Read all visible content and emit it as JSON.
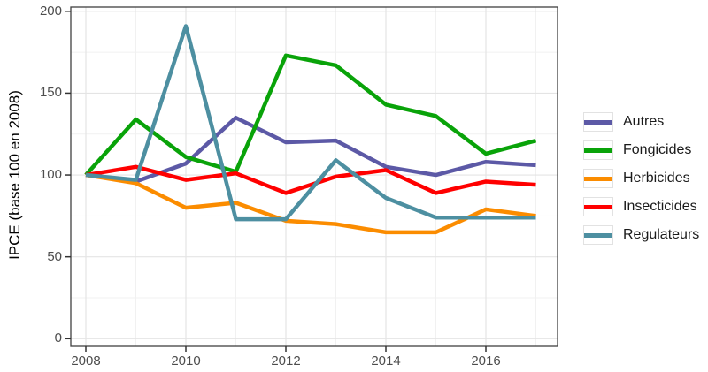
{
  "figure": {
    "background": "#ffffff",
    "panel_border_color": "#404040",
    "grid_major_color": "#e4e4e4",
    "grid_minor_color": "#f1f1f1",
    "tick_color": "#333333",
    "tick_label_color": "#4d4d4d"
  },
  "chart_data": {
    "type": "line",
    "title": "",
    "xlabel": "",
    "ylabel": "IPCE (base 100 en 2008)",
    "x": [
      2008,
      2009,
      2010,
      2011,
      2012,
      2013,
      2014,
      2015,
      2016,
      2017
    ],
    "series": [
      {
        "name": "Autres",
        "color": "#5c59a6",
        "values": [
          100,
          96,
          107,
          135,
          120,
          121,
          105,
          100,
          108,
          106
        ]
      },
      {
        "name": "Fongicides",
        "color": "#09a309",
        "values": [
          100,
          134,
          111,
          102,
          173,
          167,
          143,
          136,
          113,
          121
        ]
      },
      {
        "name": "Herbicides",
        "color": "#fb8c00",
        "values": [
          100,
          95,
          80,
          83,
          72,
          70,
          65,
          65,
          79,
          75
        ]
      },
      {
        "name": "Insecticides",
        "color": "#ff0000",
        "values": [
          100,
          105,
          97,
          101,
          89,
          99,
          103,
          89,
          96,
          94
        ]
      },
      {
        "name": "Regulateurs",
        "color": "#4d8fa1",
        "values": [
          100,
          97,
          191,
          73,
          73,
          109,
          86,
          74,
          74,
          74
        ]
      }
    ],
    "x_axis": {
      "major_ticks": [
        2008,
        2010,
        2012,
        2014,
        2016
      ],
      "minor_ticks": [
        2009,
        2011,
        2013,
        2015,
        2017
      ],
      "tick_labels": [
        "2008",
        "2010",
        "2012",
        "2014",
        "2016"
      ]
    },
    "y_axis": {
      "major_ticks": [
        0,
        50,
        100,
        150,
        200
      ],
      "minor_ticks": [
        25,
        75,
        125,
        175
      ],
      "tick_labels": [
        "0",
        "50",
        "100",
        "150",
        "200"
      ],
      "ylim": [
        0,
        200
      ]
    },
    "grid": true,
    "legend_position": "right"
  }
}
